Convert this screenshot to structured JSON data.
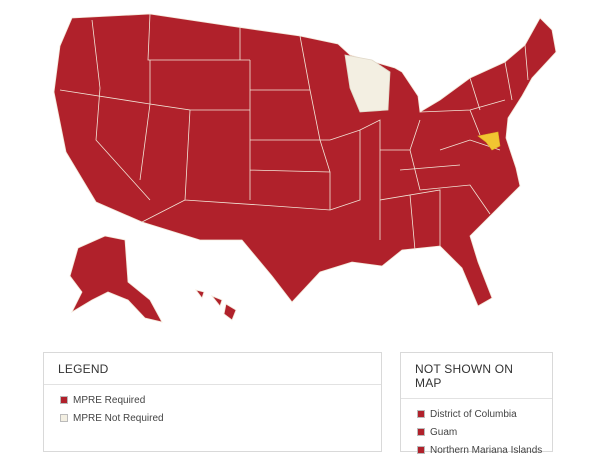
{
  "legend": {
    "title": "LEGEND",
    "items": [
      {
        "label": "MPRE Required",
        "color": "#b0212b"
      },
      {
        "label": "MPRE Not Required",
        "color": "#f3efe2"
      }
    ]
  },
  "not_shown": {
    "title": "NOT SHOWN ON MAP",
    "items": [
      "District of Columbia",
      "Guam",
      "Northern Mariana Islands"
    ]
  }
}
